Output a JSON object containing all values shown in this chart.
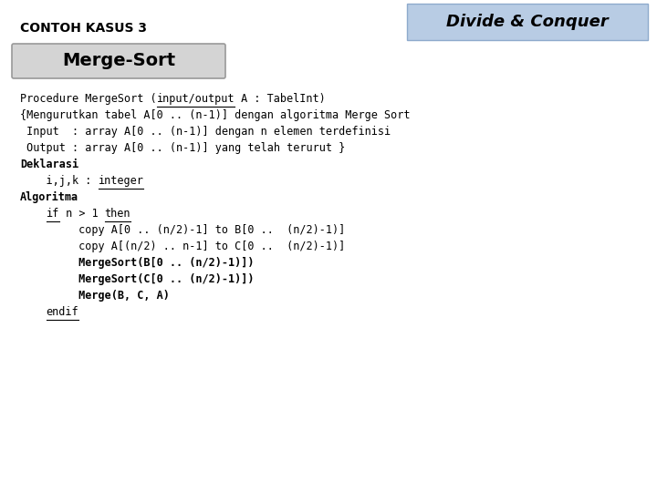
{
  "bg_color": "#ffffff",
  "header_text": "CONTOH KASUS 3",
  "header_fontsize": 10,
  "header_color": "#000000",
  "badge_text": "Divide & Conquer",
  "badge_bg": "#b8cce4",
  "badge_fontsize": 13,
  "badge_border": "#8eaacc",
  "title_box_text": "Merge-Sort",
  "title_box_bg": "#d4d4d4",
  "title_box_border": "#999999",
  "title_fontsize": 14,
  "code_fontsize": 8.5,
  "code_color": "#000000",
  "lines": [
    {
      "parts": [
        {
          "t": "Procedure MergeSort (",
          "ul": false,
          "bold": false
        },
        {
          "t": "input/output",
          "ul": true,
          "bold": false
        },
        {
          "t": " A : TabelInt)",
          "ul": false,
          "bold": false
        }
      ]
    },
    {
      "parts": [
        {
          "t": "{Mengurutkan tabel A[0 .. (n-1)] dengan algoritma Merge Sort",
          "ul": false,
          "bold": false
        }
      ]
    },
    {
      "parts": [
        {
          "t": " Input  : array A[0 .. (n-1)] dengan n elemen terdefinisi",
          "ul": false,
          "bold": false
        }
      ]
    },
    {
      "parts": [
        {
          "t": " Output : array A[0 .. (n-1)] yang telah terurut }",
          "ul": false,
          "bold": false
        }
      ]
    },
    {
      "parts": [
        {
          "t": "Deklarasi",
          "ul": false,
          "bold": true
        }
      ]
    },
    {
      "parts": [
        {
          "t": "    i,j,k : ",
          "ul": false,
          "bold": false
        },
        {
          "t": "integer",
          "ul": true,
          "bold": false
        }
      ]
    },
    {
      "parts": [
        {
          "t": "Algoritma",
          "ul": false,
          "bold": true
        }
      ]
    },
    {
      "parts": [
        {
          "t": "    ",
          "ul": false,
          "bold": false
        },
        {
          "t": "if",
          "ul": true,
          "bold": false
        },
        {
          "t": " n > 1 ",
          "ul": false,
          "bold": false
        },
        {
          "t": "then",
          "ul": true,
          "bold": false
        }
      ]
    },
    {
      "parts": [
        {
          "t": "         copy A[0 .. (n/2)-1] to B[0 ..  (n/2)-1)]",
          "ul": false,
          "bold": false
        }
      ]
    },
    {
      "parts": [
        {
          "t": "         copy A[(n/2) .. n-1] to C[0 ..  (n/2)-1)]",
          "ul": false,
          "bold": false
        }
      ]
    },
    {
      "parts": [
        {
          "t": "         MergeSort(B[0 .. (n/2)-1)])",
          "ul": false,
          "bold": true
        }
      ]
    },
    {
      "parts": [
        {
          "t": "         MergeSort(C[0 .. (n/2)-1)])",
          "ul": false,
          "bold": true
        }
      ]
    },
    {
      "parts": [
        {
          "t": "         Merge(B, C, A)",
          "ul": false,
          "bold": true
        }
      ]
    },
    {
      "parts": [
        {
          "t": "    ",
          "ul": false,
          "bold": false
        },
        {
          "t": "endif",
          "ul": true,
          "bold": false
        }
      ]
    }
  ]
}
